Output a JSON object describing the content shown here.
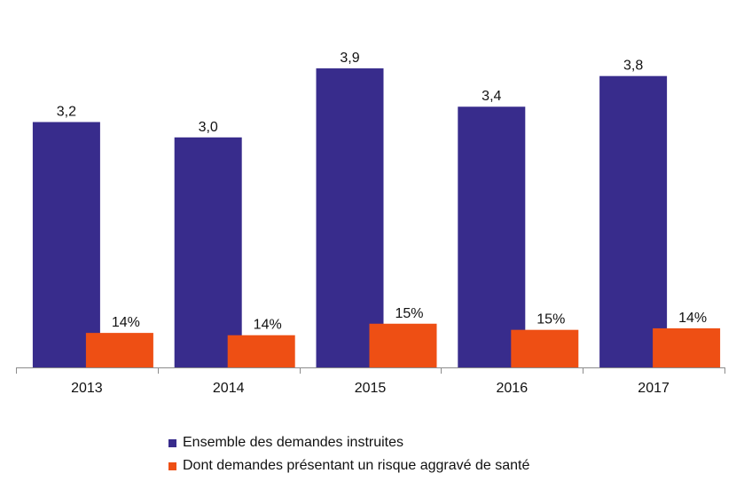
{
  "colors": {
    "series1": "#382C8C",
    "series2": "#EE4F14",
    "axis": "#8C8C8C",
    "text": "#111111"
  },
  "chart_data": {
    "type": "bar",
    "categories": [
      "2013",
      "2014",
      "2015",
      "2016",
      "2017"
    ],
    "series": [
      {
        "name": "Ensemble des demandes instruites",
        "values": [
          3.2,
          3.0,
          3.9,
          3.4,
          3.8
        ],
        "labels": [
          "3,2",
          "3,0",
          "3,9",
          "3,4",
          "3,8"
        ]
      },
      {
        "name": "Dont demandes présentant un risque aggravé de santé",
        "values": [
          0.45,
          0.42,
          0.57,
          0.49,
          0.51
        ],
        "percent": [
          14,
          14,
          15,
          15,
          14
        ],
        "labels": [
          "14%",
          "14%",
          "15%",
          "15%",
          "14%"
        ]
      }
    ],
    "title": "",
    "xlabel": "",
    "ylabel": "",
    "ylim": [
      0,
      4.3
    ],
    "grid": false,
    "legend_position": "bottom"
  },
  "legend": [
    {
      "label": "Ensemble des demandes instruites"
    },
    {
      "label": "Dont demandes présentant un risque aggravé de santé"
    }
  ]
}
